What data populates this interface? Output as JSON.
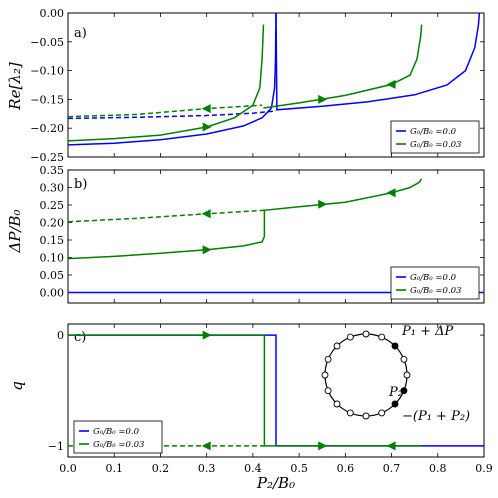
{
  "chart_data": [
    {
      "type": "line",
      "panel_label": "a)",
      "ylabel": "Re[λ₂]",
      "xlim": [
        0.0,
        0.9
      ],
      "ylim": [
        -0.25,
        0.0
      ],
      "ytick_labels": [
        "0.00",
        "−0.05",
        "−0.10",
        "−0.15",
        "−0.20",
        "−0.25"
      ],
      "series": [
        {
          "name": "G₀/B₀ =0.0",
          "color": "#0000ff",
          "style": "solid",
          "points": [
            [
              0.0,
              -0.229
            ],
            [
              0.1,
              -0.226
            ],
            [
              0.2,
              -0.22
            ],
            [
              0.3,
              -0.21
            ],
            [
              0.38,
              -0.196
            ],
            [
              0.42,
              -0.182
            ],
            [
              0.44,
              -0.165
            ],
            [
              0.447,
              -0.13
            ],
            [
              0.449,
              -0.08
            ],
            [
              0.45,
              0.0
            ]
          ]
        },
        {
          "name": "G₀/B₀ =0.0",
          "color": "#0000ff",
          "style": "solid",
          "points": [
            [
              0.45,
              0.0
            ],
            [
              0.452,
              -0.168
            ],
            [
              0.55,
              -0.162
            ],
            [
              0.65,
              -0.154
            ],
            [
              0.75,
              -0.142
            ],
            [
              0.82,
              -0.125
            ],
            [
              0.86,
              -0.1
            ],
            [
              0.88,
              -0.06
            ],
            [
              0.888,
              -0.02
            ],
            [
              0.89,
              0.0
            ]
          ]
        },
        {
          "name": "G₀/B₀ =0.0",
          "color": "#0000ff",
          "style": "dashed",
          "points": [
            [
              0.0,
              -0.183
            ],
            [
              0.15,
              -0.181
            ],
            [
              0.3,
              -0.178
            ],
            [
              0.4,
              -0.174
            ],
            [
              0.45,
              -0.17
            ]
          ]
        },
        {
          "name": "G₀/B₀ =0.03",
          "color": "#008000",
          "style": "solid",
          "points": [
            [
              0.0,
              -0.222
            ],
            [
              0.1,
              -0.218
            ],
            [
              0.2,
              -0.212
            ],
            [
              0.3,
              -0.198
            ],
            [
              0.36,
              -0.182
            ],
            [
              0.4,
              -0.16
            ],
            [
              0.415,
              -0.13
            ],
            [
              0.42,
              -0.08
            ],
            [
              0.423,
              -0.02
            ]
          ]
        },
        {
          "name": "G₀/B₀ =0.03",
          "color": "#008000",
          "style": "solid",
          "points": [
            [
              0.423,
              -0.165
            ],
            [
              0.5,
              -0.156
            ],
            [
              0.6,
              -0.143
            ],
            [
              0.7,
              -0.124
            ],
            [
              0.74,
              -0.108
            ],
            [
              0.755,
              -0.08
            ],
            [
              0.763,
              -0.04
            ],
            [
              0.765,
              -0.02
            ]
          ]
        },
        {
          "name": "G₀/B₀ =0.03",
          "color": "#008000",
          "style": "dashed",
          "points": [
            [
              0.0,
              -0.18
            ],
            [
              0.15,
              -0.176
            ],
            [
              0.3,
              -0.166
            ],
            [
              0.42,
              -0.16
            ]
          ]
        }
      ],
      "arrows": [
        {
          "x": 0.3,
          "y": -0.198,
          "dir": "right",
          "color": "#008000"
        },
        {
          "x": 0.3,
          "y": -0.166,
          "dir": "left",
          "color": "#008000"
        },
        {
          "x": 0.55,
          "y": -0.15,
          "dir": "right",
          "color": "#008000"
        },
        {
          "x": 0.7,
          "y": -0.124,
          "dir": "left",
          "color": "#008000"
        }
      ],
      "legend": {
        "position": "bottom-right",
        "entries": [
          {
            "label": "G₀/B₀ =0.0",
            "color": "#0000ff"
          },
          {
            "label": "G₀/B₀ =0.03",
            "color": "#008000"
          }
        ]
      }
    },
    {
      "type": "line",
      "panel_label": "b)",
      "ylabel": "ΔP/B₀",
      "xlim": [
        0.0,
        0.9
      ],
      "ylim": [
        -0.03,
        0.35
      ],
      "ytick_labels": [
        "0.35",
        "0.30",
        "0.25",
        "0.20",
        "0.15",
        "0.10",
        "0.05",
        "0.00"
      ],
      "series": [
        {
          "name": "G₀/B₀ =0.0",
          "color": "#0000ff",
          "style": "solid",
          "points": [
            [
              0.0,
              0.0
            ],
            [
              0.9,
              0.0
            ]
          ]
        },
        {
          "name": "G₀/B₀ =0.03",
          "color": "#008000",
          "style": "solid",
          "points": [
            [
              0.0,
              0.097
            ],
            [
              0.1,
              0.103
            ],
            [
              0.2,
              0.112
            ],
            [
              0.3,
              0.122
            ],
            [
              0.38,
              0.133
            ],
            [
              0.42,
              0.145
            ],
            [
              0.425,
              0.16
            ],
            [
              0.425,
              0.235
            ],
            [
              0.5,
              0.245
            ],
            [
              0.6,
              0.258
            ],
            [
              0.7,
              0.285
            ],
            [
              0.74,
              0.3
            ],
            [
              0.76,
              0.315
            ],
            [
              0.765,
              0.325
            ]
          ]
        },
        {
          "name": "G₀/B₀ =0.03",
          "color": "#008000",
          "style": "dashed",
          "points": [
            [
              0.0,
              0.202
            ],
            [
              0.15,
              0.212
            ],
            [
              0.3,
              0.225
            ],
            [
              0.425,
              0.235
            ]
          ]
        }
      ],
      "arrows": [
        {
          "x": 0.3,
          "y": 0.122,
          "dir": "right",
          "color": "#008000"
        },
        {
          "x": 0.3,
          "y": 0.225,
          "dir": "left",
          "color": "#008000"
        },
        {
          "x": 0.55,
          "y": 0.252,
          "dir": "right",
          "color": "#008000"
        },
        {
          "x": 0.7,
          "y": 0.285,
          "dir": "left",
          "color": "#008000"
        }
      ],
      "legend": {
        "position": "bottom-right",
        "entries": [
          {
            "label": "G₀/B₀ =0.0",
            "color": "#0000ff"
          },
          {
            "label": "G₀/B₀ =0.03",
            "color": "#008000"
          }
        ]
      }
    },
    {
      "type": "line",
      "panel_label": "c)",
      "ylabel": "q",
      "xlabel": "P₂/B₀",
      "xlim": [
        0.0,
        0.9
      ],
      "ylim": [
        -1.1,
        0.1
      ],
      "ytick_labels": [
        "0",
        "−1"
      ],
      "xtick_labels": [
        "0.0",
        "0.1",
        "0.2",
        "0.3",
        "0.4",
        "0.5",
        "0.6",
        "0.7",
        "0.8",
        "0.9"
      ],
      "series": [
        {
          "name": "G₀/B₀ =0.0",
          "color": "#0000ff",
          "style": "solid",
          "points": [
            [
              0.0,
              0.0
            ],
            [
              0.45,
              0.0
            ],
            [
              0.45,
              -1.0
            ],
            [
              0.9,
              -1.0
            ]
          ]
        },
        {
          "name": "G₀/B₀ =0.03",
          "color": "#008000",
          "style": "solid",
          "points": [
            [
              0.0,
              0.0
            ],
            [
              0.425,
              0.0
            ],
            [
              0.425,
              -1.0
            ],
            [
              0.765,
              -1.0
            ]
          ]
        },
        {
          "name": "G₀/B₀ =0.03",
          "color": "#008000",
          "style": "dashed",
          "points": [
            [
              0.0,
              -1.0
            ],
            [
              0.425,
              -1.0
            ]
          ]
        }
      ],
      "arrows": [
        {
          "x": 0.3,
          "y": 0.0,
          "dir": "right",
          "color": "#008000"
        },
        {
          "x": 0.3,
          "y": -1.0,
          "dir": "left",
          "color": "#008000"
        },
        {
          "x": 0.55,
          "y": -1.0,
          "dir": "right",
          "color": "#008000"
        },
        {
          "x": 0.7,
          "y": -1.0,
          "dir": "left",
          "color": "#008000"
        }
      ],
      "legend": {
        "position": "bottom-left",
        "entries": [
          {
            "label": "G₀/B₀ =0.0",
            "color": "#0000ff"
          },
          {
            "label": "G₀/B₀ =0.03",
            "color": "#008000"
          }
        ]
      },
      "inset": {
        "type": "ring",
        "node_count": 16,
        "filled_nodes": 3,
        "labels": {
          "p1_dp": "P₁ + ΔP",
          "p2": "P₂",
          "neg": "−(P₁ + P₂)"
        }
      }
    }
  ]
}
